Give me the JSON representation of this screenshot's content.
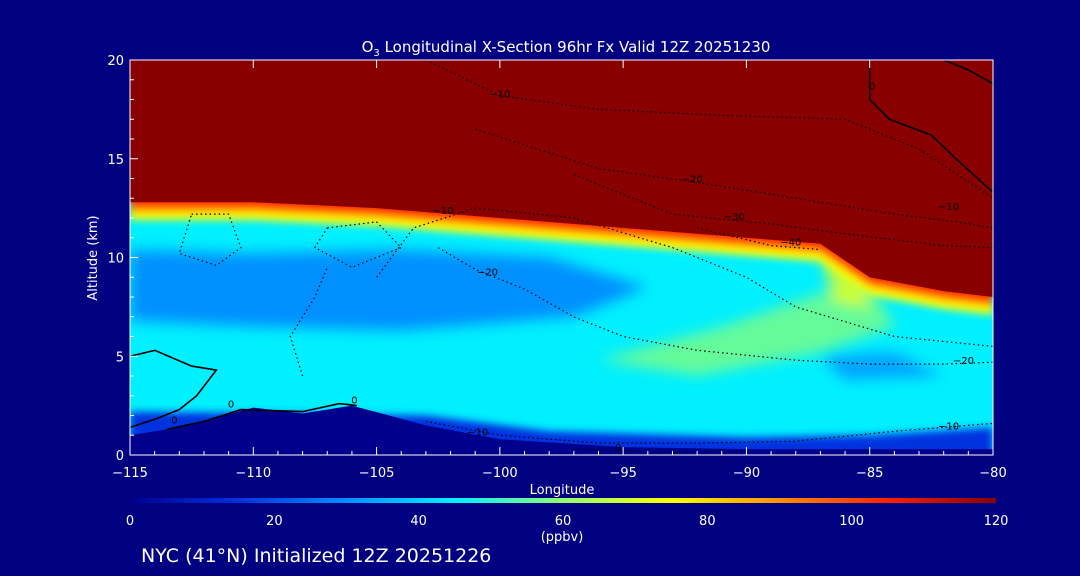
{
  "chart_data": {
    "type": "heatmap",
    "title_prefix": "O",
    "title_subscript": "3",
    "title_rest": " Longitudinal X-Section 96hr  Fx Valid 12Z 20251230",
    "xlabel": "Longitude",
    "ylabel": "Altitude (km)",
    "xlim": [
      -115,
      -80
    ],
    "ylim": [
      0,
      20
    ],
    "x_ticks": [
      -115,
      -110,
      -105,
      -100,
      -95,
      -90,
      -85,
      -80
    ],
    "x_tick_labels": [
      "−115",
      "−110",
      "−105",
      "−100",
      "−95",
      "−90",
      "−85",
      "−80"
    ],
    "y_ticks": [
      0,
      5,
      10,
      15,
      20
    ],
    "y_tick_labels": [
      "0",
      "5",
      "10",
      "15",
      "20"
    ],
    "colorbar": {
      "label": "(ppbv)",
      "range": [
        0,
        120
      ],
      "ticks": [
        0,
        20,
        40,
        60,
        80,
        100,
        120
      ],
      "tick_labels": [
        "0",
        "20",
        "40",
        "60",
        "80",
        "100",
        "120"
      ],
      "stops": [
        {
          "value": 0,
          "color": "#00008c"
        },
        {
          "value": 15,
          "color": "#0030e0"
        },
        {
          "value": 30,
          "color": "#0090ff"
        },
        {
          "value": 45,
          "color": "#00f0ff"
        },
        {
          "value": 60,
          "color": "#90ff70"
        },
        {
          "value": 75,
          "color": "#ffff00"
        },
        {
          "value": 90,
          "color": "#ff9000"
        },
        {
          "value": 105,
          "color": "#ff2000"
        },
        {
          "value": 120,
          "color": "#880000"
        }
      ]
    },
    "tropopause_km": [
      {
        "lon": -115,
        "alt": 12.8
      },
      {
        "lon": -110,
        "alt": 12.8
      },
      {
        "lon": -105,
        "alt": 12.5
      },
      {
        "lon": -100,
        "alt": 12.0
      },
      {
        "lon": -95,
        "alt": 11.5
      },
      {
        "lon": -90,
        "alt": 11.0
      },
      {
        "lon": -87,
        "alt": 10.7
      },
      {
        "lon": -85,
        "alt": 9.0
      },
      {
        "lon": -82,
        "alt": 8.3
      },
      {
        "lon": -80,
        "alt": 8.0
      }
    ],
    "terrain_km": [
      {
        "lon": -115,
        "alt": 1.0
      },
      {
        "lon": -113,
        "alt": 1.4
      },
      {
        "lon": -110,
        "alt": 2.4
      },
      {
        "lon": -108,
        "alt": 2.1
      },
      {
        "lon": -106,
        "alt": 2.5
      },
      {
        "lon": -103,
        "alt": 1.5
      },
      {
        "lon": -100,
        "alt": 0.8
      },
      {
        "lon": -95,
        "alt": 0.4
      },
      {
        "lon": -90,
        "alt": 0.3
      },
      {
        "lon": -85,
        "alt": 0.3
      },
      {
        "lon": -80,
        "alt": 0.3
      }
    ],
    "regions": [
      {
        "name": "stratosphere",
        "color": "#880000"
      },
      {
        "name": "tropopause-band",
        "color": "#ff2000"
      },
      {
        "name": "upper-troposphere",
        "color": "#0090ff"
      },
      {
        "name": "mid-troposphere",
        "color": "#00f0ff"
      },
      {
        "name": "boundary-layer",
        "color": "#0030e0"
      }
    ],
    "contour_labels": [
      {
        "text": "−10",
        "lon": -100,
        "alt": 18.1
      },
      {
        "text": "−20",
        "lon": -92.2,
        "alt": 13.8
      },
      {
        "text": "−30",
        "lon": -90.5,
        "alt": 11.9
      },
      {
        "text": "−40",
        "lon": -88.2,
        "alt": 10.6
      },
      {
        "text": "−10",
        "lon": -102.3,
        "alt": 12.2
      },
      {
        "text": "−20",
        "lon": -100.5,
        "alt": 9.1
      },
      {
        "text": "−10",
        "lon": -81.8,
        "alt": 12.4
      },
      {
        "text": "−20",
        "lon": -81.2,
        "alt": 4.6
      },
      {
        "text": "−10",
        "lon": -81.8,
        "alt": 1.3
      },
      {
        "text": "−10",
        "lon": -100.9,
        "alt": 1.0
      },
      {
        "text": "0",
        "lon": -95.2,
        "alt": 0.2
      },
      {
        "text": "0",
        "lon": -113.2,
        "alt": 1.6
      },
      {
        "text": "0",
        "lon": -110.9,
        "alt": 2.4
      },
      {
        "text": "0",
        "lon": -105.9,
        "alt": 2.6
      },
      {
        "text": "0",
        "lon": -84.9,
        "alt": 18.5
      }
    ]
  },
  "footer_text": "NYC (41°N) Initialized 12Z 20251226"
}
